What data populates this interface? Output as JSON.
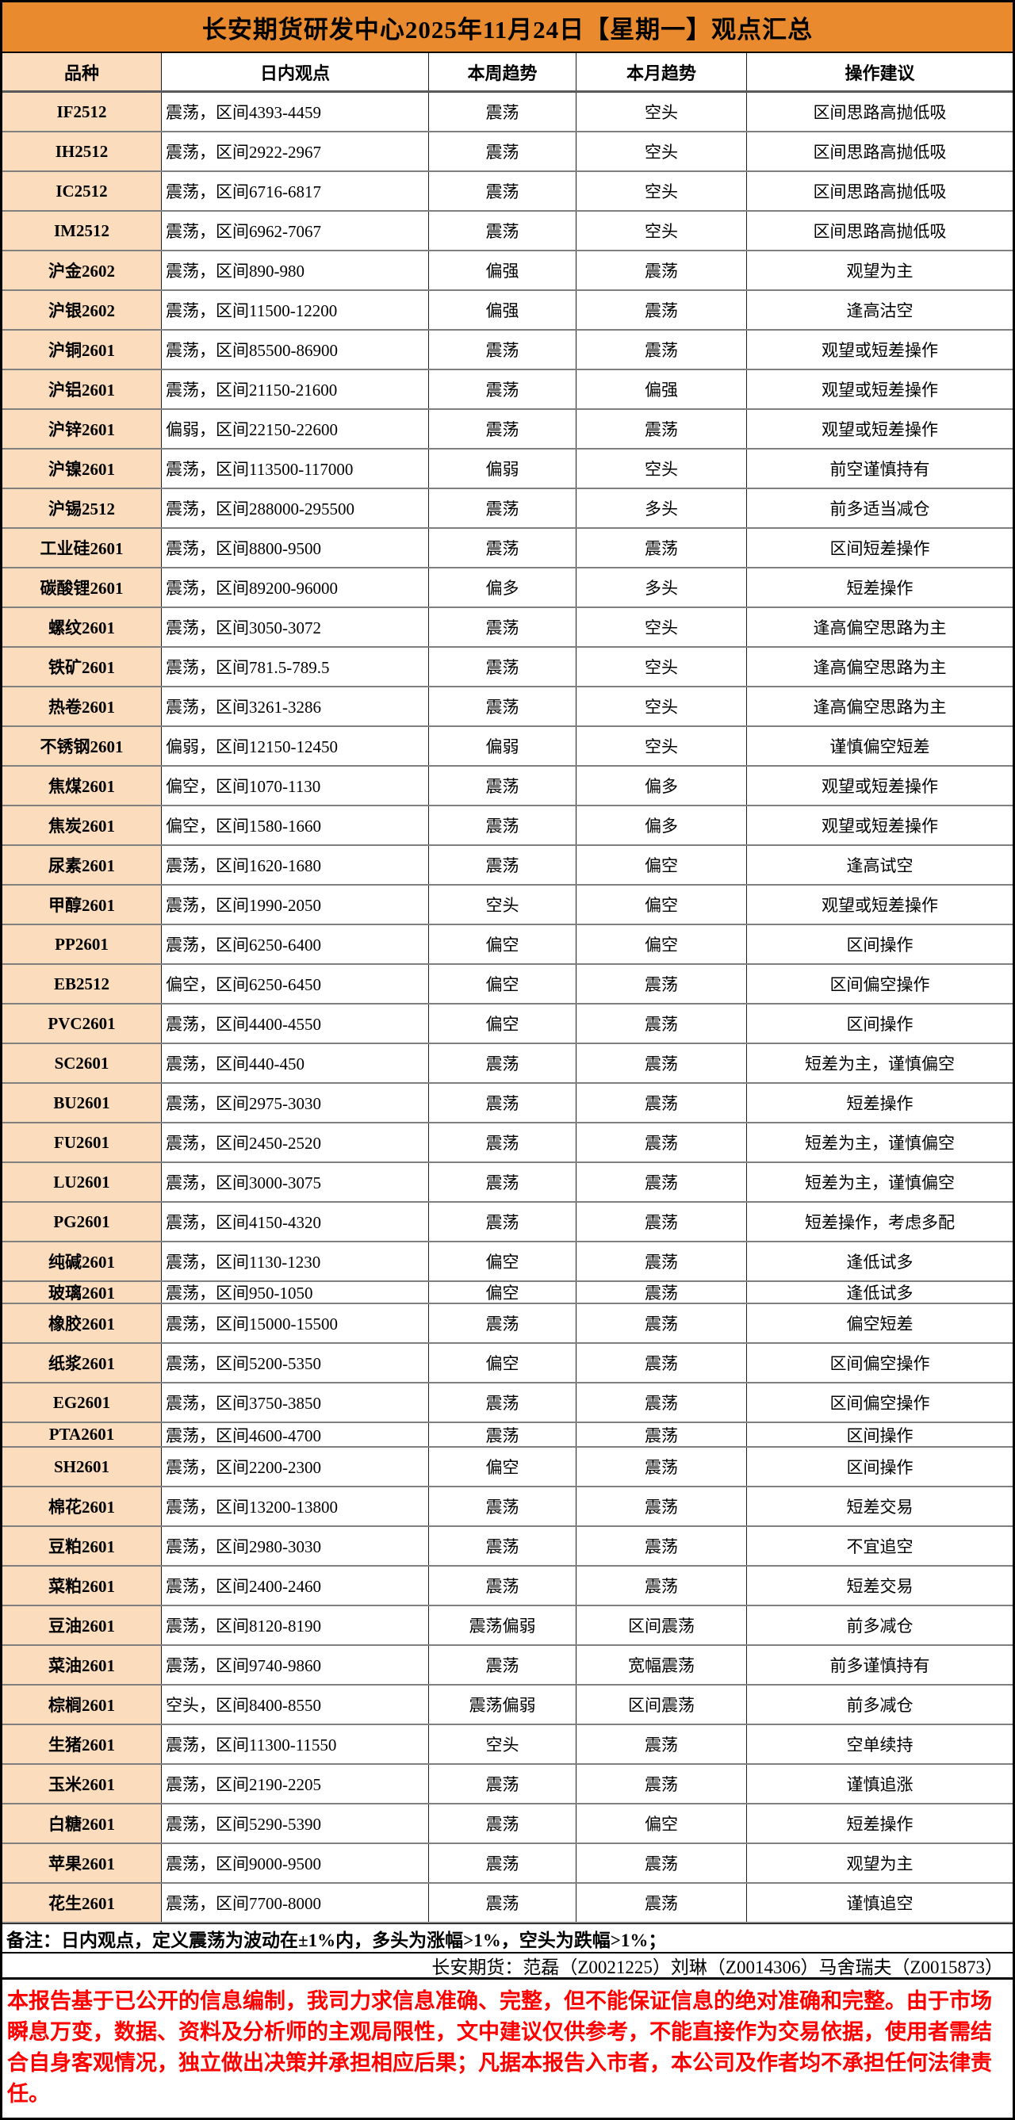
{
  "title": "长安期货研发中心2025年11月24日【星期一】观点汇总",
  "table": {
    "columns": [
      "品种",
      "日内观点",
      "本周趋势",
      "本月趋势",
      "操作建议"
    ],
    "rows": [
      {
        "variety": "IF2512",
        "intraday": "震荡，区间4393-4459",
        "week": "震荡",
        "month": "空头",
        "advice": "区间思路高抛低吸"
      },
      {
        "variety": "IH2512",
        "intraday": "震荡，区间2922-2967",
        "week": "震荡",
        "month": "空头",
        "advice": "区间思路高抛低吸"
      },
      {
        "variety": "IC2512",
        "intraday": "震荡，区间6716-6817",
        "week": "震荡",
        "month": "空头",
        "advice": "区间思路高抛低吸"
      },
      {
        "variety": "IM2512",
        "intraday": "震荡，区间6962-7067",
        "week": "震荡",
        "month": "空头",
        "advice": "区间思路高抛低吸"
      },
      {
        "variety": "沪金2602",
        "intraday": "震荡，区间890-980",
        "week": "偏强",
        "month": "震荡",
        "advice": "观望为主"
      },
      {
        "variety": "沪银2602",
        "intraday": "震荡，区间11500-12200",
        "week": "偏强",
        "month": "震荡",
        "advice": "逢高沽空"
      },
      {
        "variety": "沪铜2601",
        "intraday": "震荡，区间85500-86900",
        "week": "震荡",
        "month": "震荡",
        "advice": "观望或短差操作"
      },
      {
        "variety": "沪铝2601",
        "intraday": "震荡，区间21150-21600",
        "week": "震荡",
        "month": "偏强",
        "advice": "观望或短差操作"
      },
      {
        "variety": "沪锌2601",
        "intraday": "偏弱，区间22150-22600",
        "week": "震荡",
        "month": "震荡",
        "advice": "观望或短差操作"
      },
      {
        "variety": "沪镍2601",
        "intraday": "震荡，区间113500-117000",
        "week": "偏弱",
        "month": "空头",
        "advice": "前空谨慎持有"
      },
      {
        "variety": "沪锡2512",
        "intraday": "震荡，区间288000-295500",
        "week": "震荡",
        "month": "多头",
        "advice": "前多适当减仓"
      },
      {
        "variety": "工业硅2601",
        "intraday": "震荡，区间8800-9500",
        "week": "震荡",
        "month": "震荡",
        "advice": "区间短差操作"
      },
      {
        "variety": "碳酸锂2601",
        "intraday": "震荡，区间89200-96000",
        "week": "偏多",
        "month": "多头",
        "advice": "短差操作"
      },
      {
        "variety": "螺纹2601",
        "intraday": "震荡，区间3050-3072",
        "week": "震荡",
        "month": "空头",
        "advice": "逢高偏空思路为主"
      },
      {
        "variety": "铁矿2601",
        "intraday": "震荡，区间781.5-789.5",
        "week": "震荡",
        "month": "空头",
        "advice": "逢高偏空思路为主"
      },
      {
        "variety": "热卷2601",
        "intraday": "震荡，区间3261-3286",
        "week": "震荡",
        "month": "空头",
        "advice": "逢高偏空思路为主"
      },
      {
        "variety": "不锈钢2601",
        "intraday": "偏弱，区间12150-12450",
        "week": "偏弱",
        "month": "空头",
        "advice": "谨慎偏空短差"
      },
      {
        "variety": "焦煤2601",
        "intraday": "偏空，区间1070-1130",
        "week": "震荡",
        "month": "偏多",
        "advice": "观望或短差操作"
      },
      {
        "variety": "焦炭2601",
        "intraday": "偏空，区间1580-1660",
        "week": "震荡",
        "month": "偏多",
        "advice": "观望或短差操作"
      },
      {
        "variety": "尿素2601",
        "intraday": "震荡，区间1620-1680",
        "week": "震荡",
        "month": "偏空",
        "advice": "逢高试空"
      },
      {
        "variety": "甲醇2601",
        "intraday": "震荡，区间1990-2050",
        "week": "空头",
        "month": "偏空",
        "advice": "观望或短差操作"
      },
      {
        "variety": "PP2601",
        "intraday": "震荡，区间6250-6400",
        "week": "偏空",
        "month": "偏空",
        "advice": "区间操作"
      },
      {
        "variety": "EB2512",
        "intraday": "偏空，区间6250-6450",
        "week": "偏空",
        "month": "震荡",
        "advice": "区间偏空操作"
      },
      {
        "variety": "PVC2601",
        "intraday": "震荡，区间4400-4550",
        "week": "偏空",
        "month": "震荡",
        "advice": "区间操作"
      },
      {
        "variety": "SC2601",
        "intraday": "震荡，区间440-450",
        "week": "震荡",
        "month": "震荡",
        "advice": "短差为主，谨慎偏空"
      },
      {
        "variety": "BU2601",
        "intraday": "震荡，区间2975-3030",
        "week": "震荡",
        "month": "震荡",
        "advice": "短差操作"
      },
      {
        "variety": "FU2601",
        "intraday": "震荡，区间2450-2520",
        "week": "震荡",
        "month": "震荡",
        "advice": "短差为主，谨慎偏空"
      },
      {
        "variety": "LU2601",
        "intraday": "震荡，区间3000-3075",
        "week": "震荡",
        "month": "震荡",
        "advice": "短差为主，谨慎偏空"
      },
      {
        "variety": "PG2601",
        "intraday": "震荡，区间4150-4320",
        "week": "震荡",
        "month": "震荡",
        "advice": "短差操作，考虑多配"
      },
      {
        "variety": "纯碱2601",
        "intraday": "震荡，区间1130-1230",
        "week": "偏空",
        "month": "震荡",
        "advice": "逢低试多"
      },
      {
        "variety": "玻璃2601",
        "intraday": "震荡，区间950-1050",
        "week": "偏空",
        "month": "震荡",
        "advice": "逢低试多"
      },
      {
        "variety": "橡胶2601",
        "intraday": "震荡，区间15000-15500",
        "week": "震荡",
        "month": "震荡",
        "advice": "偏空短差"
      },
      {
        "variety": "纸浆2601",
        "intraday": "震荡，区间5200-5350",
        "week": "偏空",
        "month": "震荡",
        "advice": "区间偏空操作"
      },
      {
        "variety": "EG2601",
        "intraday": "震荡，区间3750-3850",
        "week": "震荡",
        "month": "震荡",
        "advice": "区间偏空操作"
      },
      {
        "variety": "PTA2601",
        "intraday": "震荡，区间4600-4700",
        "week": "震荡",
        "month": "震荡",
        "advice": "区间操作"
      },
      {
        "variety": "SH2601",
        "intraday": "震荡，区间2200-2300",
        "week": "偏空",
        "month": "震荡",
        "advice": "区间操作"
      },
      {
        "variety": "棉花2601",
        "intraday": "震荡，区间13200-13800",
        "week": "震荡",
        "month": "震荡",
        "advice": "短差交易"
      },
      {
        "variety": "豆粕2601",
        "intraday": "震荡，区间2980-3030",
        "week": "震荡",
        "month": "震荡",
        "advice": "不宜追空"
      },
      {
        "variety": "菜粕2601",
        "intraday": "震荡，区间2400-2460",
        "week": "震荡",
        "month": "震荡",
        "advice": "短差交易"
      },
      {
        "variety": "豆油2601",
        "intraday": "震荡，区间8120-8190",
        "week": "震荡偏弱",
        "month": "区间震荡",
        "advice": "前多减仓"
      },
      {
        "variety": "菜油2601",
        "intraday": "震荡，区间9740-9860",
        "week": "震荡",
        "month": "宽幅震荡",
        "advice": "前多谨慎持有"
      },
      {
        "variety": "棕榈2601",
        "intraday": "空头，区间8400-8550",
        "week": "震荡偏弱",
        "month": "区间震荡",
        "advice": "前多减仓"
      },
      {
        "variety": "生猪2601",
        "intraday": "震荡，区间11300-11550",
        "week": "空头",
        "month": "震荡",
        "advice": "空单续持"
      },
      {
        "variety": "玉米2601",
        "intraday": "震荡，区间2190-2205",
        "week": "震荡",
        "month": "震荡",
        "advice": "谨慎追涨"
      },
      {
        "variety": "白糖2601",
        "intraday": "震荡，区间5290-5390",
        "week": "震荡",
        "month": "偏空",
        "advice": "短差操作"
      },
      {
        "variety": "苹果2601",
        "intraday": "震荡，区间9000-9500",
        "week": "震荡",
        "month": "震荡",
        "advice": "观望为主"
      },
      {
        "variety": "花生2601",
        "intraday": "震荡，区间7700-8000",
        "week": "震荡",
        "month": "震荡",
        "advice": "谨慎追空"
      }
    ]
  },
  "footer": {
    "note": "备注：日内观点，定义震荡为波动在±1%内，多头为涨幅>1%，空头为跌幅>1%；",
    "signature": "长安期货：范磊（Z0021225）刘琳（Z0014306）马舍瑞夫（Z0015873）",
    "disclaimer": "本报告基于已公开的信息编制，我司力求信息准确、完整，但不能保证信息的绝对准确和完整。由于市场瞬息万变，数据、资料及分析师的主观局限性，文中建议仅供参考，不能直接作为交易依据，使用者需结合自身客观情况，独立做出决策并承担相应后果；凡据本报告入市者，本公司及作者均不承担任何法律责任。"
  },
  "colors": {
    "title_bg": "#E98A2F",
    "variety_bg": "#FBDCBD",
    "disclaimer": "#FF0000",
    "grid_line": "#7F7F7F",
    "frame": "#000000"
  }
}
